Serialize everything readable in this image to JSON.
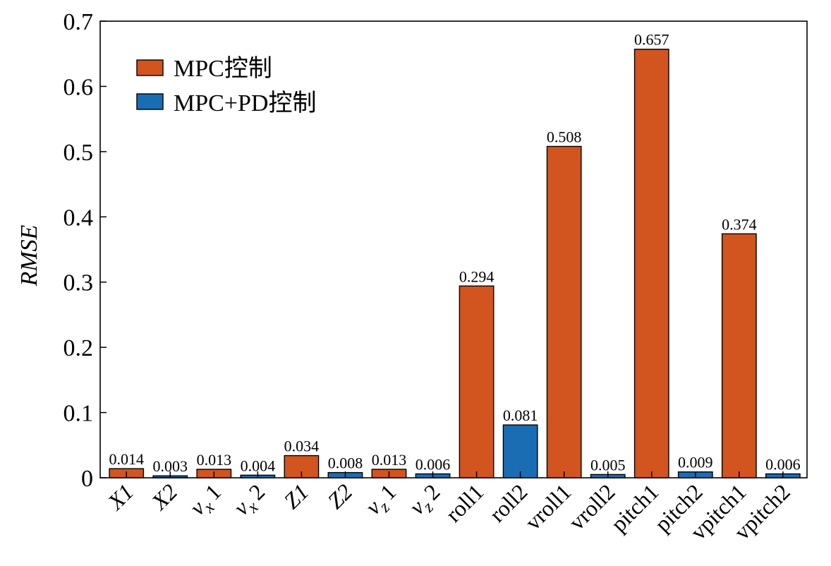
{
  "chart_data": {
    "type": "bar",
    "ylabel": "RMSE",
    "ylim": [
      0,
      0.7
    ],
    "yticks": [
      "0",
      "0.1",
      "0.2",
      "0.3",
      "0.4",
      "0.5",
      "0.6",
      "0.7"
    ],
    "legend_placement": "top-left",
    "grid": false,
    "categories": [
      "X1",
      "X2",
      "v_x 1",
      "v_x 2",
      "Z1",
      "Z2",
      "v_z 1",
      "v_z 2",
      "roll1",
      "roll2",
      "vroll1",
      "vroll2",
      "pitch1",
      "pitch2",
      "vpitch1",
      "vpitch2"
    ],
    "category_series": [
      0,
      1,
      0,
      1,
      0,
      1,
      0,
      1,
      0,
      1,
      0,
      1,
      0,
      1,
      0,
      1
    ],
    "values": [
      0.014,
      0.003,
      0.013,
      0.004,
      0.034,
      0.008,
      0.013,
      0.006,
      0.294,
      0.081,
      0.508,
      0.005,
      0.657,
      0.009,
      0.374,
      0.006
    ],
    "value_labels": [
      "0.014",
      "0.003",
      "0.013",
      "0.004",
      "0.034",
      "0.008",
      "0.013",
      "0.006",
      "0.294",
      "0.081",
      "0.508",
      "0.005",
      "0.657",
      "0.009",
      "0.374",
      "0.006"
    ],
    "series": [
      {
        "name": "MPC控制",
        "color": "#D2541E"
      },
      {
        "name": "MPC+PD控制",
        "color": "#1A6DB3"
      }
    ]
  }
}
